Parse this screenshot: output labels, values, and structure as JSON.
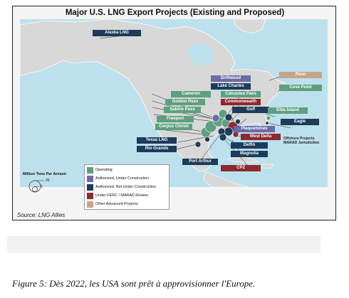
{
  "title": "Major U.S. LNG Export Projects (Existing and Proposed)",
  "colors": {
    "operating": "#5e9f80",
    "authorized_under_construction": "#6b6aa8",
    "authorized_not_under_construction": "#1c3c5a",
    "ferc_marad": "#8c2a2e",
    "other_advanced": "#c6a48a",
    "water": "#bde0ed",
    "land": "#d8d8d8"
  },
  "labels": {
    "alaska": "Alaska LNG",
    "driftwood": "Driftwood",
    "lake_charles": "Lake Charles",
    "cameron": "Cameron",
    "calcasieu": "Calcasieu Pass",
    "golden_pass": "Golden Pass",
    "commonwealth": "Commonwealth",
    "sabine": "Sabine Pass",
    "gulf": "Gulf",
    "freeport": "Freeport",
    "corpus": "Corpus Christi",
    "plaquemines": "Plaquemines",
    "west_delta": "West Delta",
    "texas_lng": "Texas LNG",
    "delfin": "Delfin",
    "rio_grande": "Rio Grande",
    "magnolia": "Magnolia",
    "port_arthur": "Port Arthur",
    "cp2": "CP2",
    "penn": "Penn",
    "cove_point": "Cove Point",
    "elba": "Elba Island",
    "eagle": "Eagle"
  },
  "offshore_note": [
    "Offshore Projects",
    "MARAD Jurisdiction"
  ],
  "legend": {
    "size_title": "Million Tons Per Annum",
    "size_small": "5",
    "size_large": "25",
    "items": [
      {
        "label": "Operating",
        "color": "#5e9f80"
      },
      {
        "label": "Authorized, Under Construction",
        "color": "#6b6aa8"
      },
      {
        "label": "Authorized, Not Under Construction",
        "color": "#1c3c5a"
      },
      {
        "label": "Under FERC / MARAD Review",
        "color": "#8c2a2e"
      },
      {
        "label": "Other Advanced Projects",
        "color": "#c6a48a"
      }
    ]
  },
  "source": "Source: LNG Allies",
  "caption": "Figure 5: Dès 2022, les USA sont prêt à approvisionner l'Europe."
}
